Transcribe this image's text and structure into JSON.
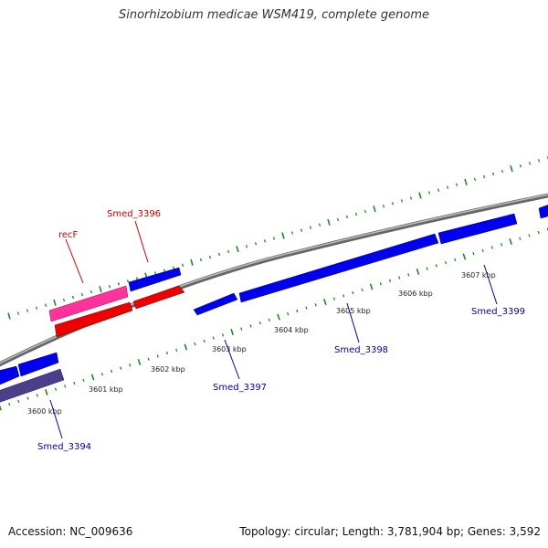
{
  "title": "Sinorhizobium medicae WSM419, complete genome",
  "footer": {
    "accession": "Accession: NC_009636",
    "summary": "Topology: circular; Length: 3,781,904 bp; Genes: 3,592"
  },
  "kbp_labels": [
    "3600 kbp",
    "3601 kbp",
    "3602 kbp",
    "3603 kbp",
    "3604 kbp",
    "3605 kbp",
    "3606 kbp",
    "3607 kbp"
  ],
  "gene_labels": {
    "recF": "recF",
    "smed3396": "Smed_3396",
    "smed3394": "Smed_3394",
    "smed3397": "Smed_3397",
    "smed3398": "Smed_3398",
    "smed3399": "Smed_3399"
  },
  "colors": {
    "backbone": "#8a8a8a",
    "tick": "#1f8a1f",
    "forward_cds": "#0000ee",
    "reverse_cds": "#ee0000",
    "forward_gene_highlight": "#ff3399",
    "reverse_gene_dim": "#4b3f8c",
    "label_blue": "#0000aa",
    "label_red": "#cc0000"
  }
}
